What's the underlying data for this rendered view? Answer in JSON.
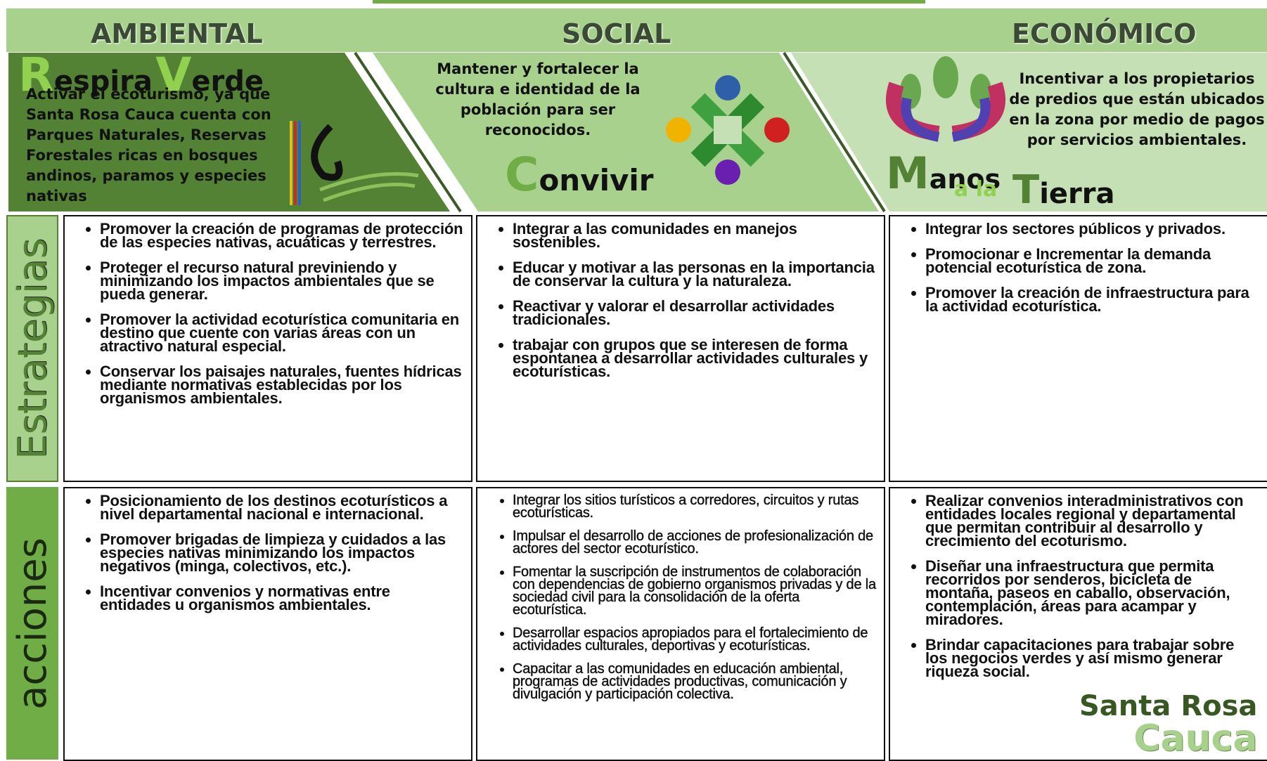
{
  "headers": [
    "AMBIENTAL",
    "SOCIAL",
    "ECONÓMICO"
  ],
  "panels": [
    {
      "logo": [
        "R",
        "espira",
        "V",
        "erde"
      ],
      "text": "Activar el ecoturismo, ya que Santa Rosa Cauca cuenta con Parques Naturales, Reservas Forestales ricas en bosques andinos, paramos y especies nativas"
    },
    {
      "logo": [
        "C",
        "onvivir"
      ],
      "text": "Mantener y fortalecer la cultura e identidad de la población para ser reconocidos."
    },
    {
      "logo": [
        "M",
        "anos",
        "a la",
        "T",
        "ierra"
      ],
      "text": "Incentivar a los propietarios de predios que están ubicados en la zona por medio de pagos por servicios ambientales."
    }
  ],
  "row_labels": [
    "Estrategias",
    "acciones"
  ],
  "strategies": [
    [
      "Promover la creación de programas de protección de las especies nativas, acuáticas y terrestres.",
      "Proteger el recurso natural previniendo y minimizando los impactos ambientales que se pueda generar.",
      "Promover la actividad ecoturística comunitaria en destino que cuente con varias áreas con un atractivo natural especial.",
      "Conservar los paisajes naturales, fuentes hídricas mediante normativas establecidas por los organismos ambientales."
    ],
    [
      "Integrar a las comunidades en manejos sostenibles.",
      "Educar y motivar a las personas en la importancia de conservar la cultura y la naturaleza.",
      "Reactivar y valorar el desarrollar actividades tradicionales.",
      "trabajar con grupos que se interesen de forma espontanea a desarrollar actividades culturales y ecoturísticas."
    ],
    [
      "Integrar los sectores públicos y privados.",
      "Promocionar e Incrementar la demanda potencial ecoturística de zona.",
      "Promover la creación de infraestructura para la actividad ecoturística."
    ]
  ],
  "actions": [
    [
      "Posicionamiento de los destinos ecoturísticos a nivel departamental nacional e internacional.",
      "Promover brigadas de limpieza y cuidados a las especies nativas minimizando los impactos negativos (minga, colectivos, etc.).",
      "Incentivar convenios y normativas entre entidades u organismos ambientales."
    ],
    [
      "Integrar los sitios turísticos a corredores, circuitos y rutas ecoturísticas.",
      "Impulsar el desarrollo de acciones de profesionalización de actores del sector ecoturístico.",
      "Fomentar la suscripción de instrumentos de colaboración con dependencias de gobierno organismos privadas y de la sociedad civil para la consolidación de la oferta ecoturística.",
      "Desarrollar espacios apropiados para el fortalecimiento de actividades culturales, deportivas y ecoturísticas.",
      "Capacitar a las comunidades en educación ambiental, programas de actividades productivas, comunicación y divulgación y participación colectiva."
    ],
    [
      "Realizar convenios interadministrativos con entidades locales regional y departamental que permitan contribuir al desarrollo y crecimiento del ecoturismo.",
      "Diseñar una infraestructura que permita recorridos por senderos, bicicleta de montaña, paseos en caballo, observación, contemplación, áreas para acampar y miradores.",
      "Brindar capacitaciones para trabajar sobre los negocios verdes y así mismo generar riqueza social."
    ]
  ],
  "footer_logo": [
    "Santa Rosa",
    "Cauca"
  ]
}
